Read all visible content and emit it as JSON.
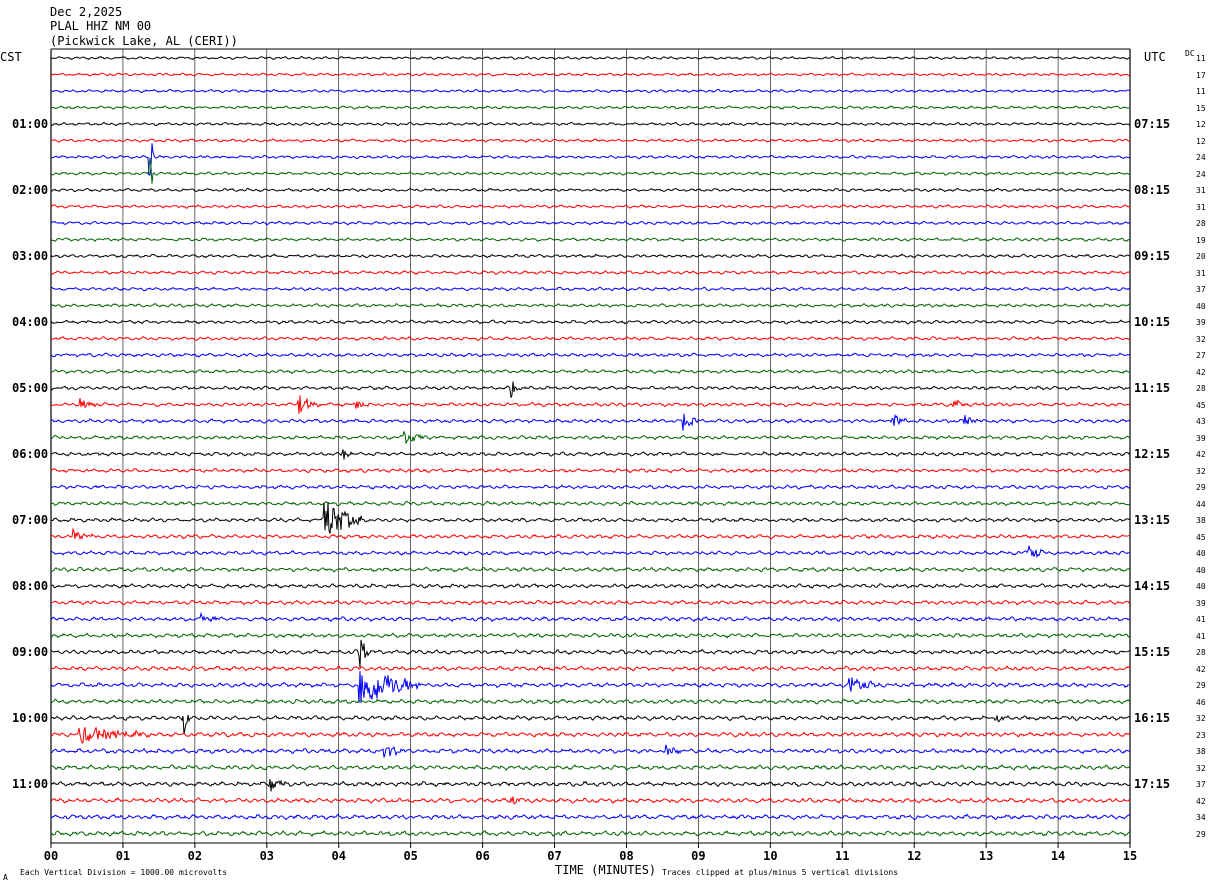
{
  "header": {
    "date": "Dec 2,2025",
    "station": "PLAL HHZ NM 00",
    "location": "(Pickwick Lake, AL (CERI))"
  },
  "left_tz": "CST",
  "right_tz": "UTC",
  "dc_label": "DC",
  "footer": {
    "scale_note": "Each Vertical Division = 1000.00 microvolts",
    "xlabel": "TIME (MINUTES)",
    "clip_note": "Traces clipped at plus/minus 5 vertical divisions",
    "corner_mark": "A"
  },
  "chart_data": {
    "type": "line",
    "title": "",
    "xlabel": "TIME (MINUTES)",
    "ylabel": "",
    "xlim": [
      0,
      15
    ],
    "x_ticks": [
      "00",
      "01",
      "02",
      "03",
      "04",
      "05",
      "06",
      "07",
      "08",
      "09",
      "10",
      "11",
      "12",
      "13",
      "14",
      "15"
    ],
    "grid": true,
    "trace_count": 48,
    "minutes_per_trace": 15,
    "trace_colors": [
      "#000000",
      "#ff0000",
      "#0000ff",
      "#006400"
    ],
    "left_hour_labels": [
      "01:00",
      "02:00",
      "03:00",
      "04:00",
      "05:00",
      "06:00",
      "07:00",
      "08:00",
      "09:00",
      "10:00",
      "11:00"
    ],
    "right_hour_labels": [
      "07:15",
      "08:15",
      "09:15",
      "10:15",
      "11:15",
      "12:15",
      "13:15",
      "14:15",
      "15:15",
      "16:15",
      "17:15"
    ],
    "dc_offsets": [
      "11",
      "17",
      "11",
      "15",
      "12",
      "12",
      "24",
      "24",
      "31",
      "31",
      "28",
      "19",
      "20",
      "31",
      "37",
      "40",
      "39",
      "32",
      "27",
      "42",
      "28",
      "45",
      "43",
      "39",
      "42",
      "32",
      "29",
      "44",
      "38",
      "45",
      "40",
      "40",
      "40",
      "39",
      "41",
      "41",
      "28",
      "42",
      "29",
      "46",
      "32",
      "23",
      "38",
      "32",
      "37",
      "42",
      "34",
      "29"
    ],
    "events": [
      {
        "trace": 6,
        "minute": 1.37,
        "amplitude": 4.5,
        "duration": 0.05
      },
      {
        "trace": 7,
        "minute": 1.37,
        "amplitude": 4.5,
        "duration": 0.05
      },
      {
        "trace": 20,
        "minute": 6.4,
        "amplitude": 1.2,
        "duration": 0.1
      },
      {
        "trace": 21,
        "minute": 0.4,
        "amplitude": 1.0,
        "duration": 0.2
      },
      {
        "trace": 21,
        "minute": 3.45,
        "amplitude": 1.0,
        "duration": 0.3
      },
      {
        "trace": 21,
        "minute": 4.25,
        "amplitude": 0.9,
        "duration": 0.15
      },
      {
        "trace": 21,
        "minute": 12.55,
        "amplitude": 0.7,
        "duration": 0.15
      },
      {
        "trace": 22,
        "minute": 8.8,
        "amplitude": 1.1,
        "duration": 0.2
      },
      {
        "trace": 22,
        "minute": 11.7,
        "amplitude": 0.8,
        "duration": 0.2
      },
      {
        "trace": 22,
        "minute": 12.7,
        "amplitude": 0.7,
        "duration": 0.2
      },
      {
        "trace": 23,
        "minute": 4.9,
        "amplitude": 0.8,
        "duration": 0.3
      },
      {
        "trace": 24,
        "minute": 4.05,
        "amplitude": 0.7,
        "duration": 0.2
      },
      {
        "trace": 28,
        "minute": 3.8,
        "amplitude": 2.6,
        "duration": 0.5
      },
      {
        "trace": 29,
        "minute": 0.3,
        "amplitude": 0.8,
        "duration": 0.3
      },
      {
        "trace": 30,
        "minute": 13.6,
        "amplitude": 0.9,
        "duration": 0.2
      },
      {
        "trace": 34,
        "minute": 2.1,
        "amplitude": 0.8,
        "duration": 0.2
      },
      {
        "trace": 36,
        "minute": 4.3,
        "amplitude": 3.0,
        "duration": 0.1
      },
      {
        "trace": 38,
        "minute": 4.3,
        "amplitude": 2.6,
        "duration": 0.8
      },
      {
        "trace": 38,
        "minute": 11.1,
        "amplitude": 1.0,
        "duration": 0.4
      },
      {
        "trace": 40,
        "minute": 1.85,
        "amplitude": 1.5,
        "duration": 0.1
      },
      {
        "trace": 40,
        "minute": 13.15,
        "amplitude": 0.7,
        "duration": 0.1
      },
      {
        "trace": 41,
        "minute": 0.4,
        "amplitude": 0.9,
        "duration": 1.0
      },
      {
        "trace": 42,
        "minute": 4.6,
        "amplitude": 1.1,
        "duration": 0.3
      },
      {
        "trace": 42,
        "minute": 8.55,
        "amplitude": 0.9,
        "duration": 0.2
      },
      {
        "trace": 44,
        "minute": 3.05,
        "amplitude": 0.9,
        "duration": 0.2
      },
      {
        "trace": 45,
        "minute": 6.4,
        "amplitude": 0.6,
        "duration": 0.2
      }
    ]
  }
}
